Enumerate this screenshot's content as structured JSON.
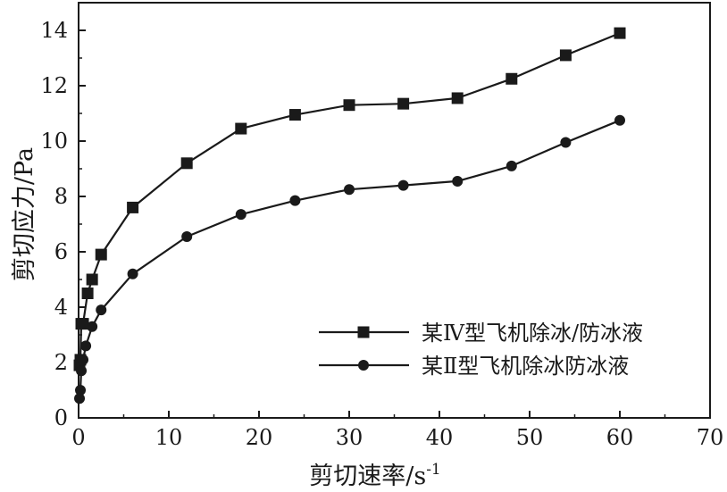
{
  "chart_data": {
    "type": "line",
    "title": "",
    "xlabel": "剪切速率/s",
    "xlabel_sup": "-1",
    "ylabel": "剪切应力/Pa",
    "xlim": [
      0,
      70
    ],
    "ylim": [
      0,
      15
    ],
    "xticks": [
      0,
      10,
      20,
      30,
      40,
      50,
      60,
      70
    ],
    "yticks": [
      0,
      2,
      4,
      6,
      8,
      10,
      12,
      14
    ],
    "grid": false,
    "legend_position": "lower-right",
    "series": [
      {
        "name": "某Ⅳ型飞机除冰/防冰液",
        "marker": "square",
        "color": "#1a1a1a",
        "x": [
          0.1,
          0.2,
          0.3,
          0.5,
          1,
          1.5,
          2.5,
          6,
          12,
          18,
          24,
          30,
          36,
          42,
          48,
          54,
          60
        ],
        "y": [
          1.9,
          2.1,
          3.4,
          3.4,
          4.5,
          5.0,
          5.9,
          7.6,
          9.2,
          10.45,
          10.95,
          11.3,
          11.35,
          11.55,
          12.25,
          13.1,
          13.9
        ]
      },
      {
        "name": "某Ⅱ型飞机除冰防冰液",
        "marker": "circle",
        "color": "#1a1a1a",
        "x": [
          0.1,
          0.2,
          0.3,
          0.5,
          0.8,
          1.5,
          2.5,
          6,
          12,
          18,
          24,
          30,
          36,
          42,
          48,
          54,
          60
        ],
        "y": [
          0.7,
          1.0,
          1.7,
          2.1,
          2.6,
          3.3,
          3.9,
          5.2,
          6.55,
          7.35,
          7.85,
          8.25,
          8.4,
          8.55,
          9.1,
          9.95,
          10.75
        ]
      }
    ]
  }
}
